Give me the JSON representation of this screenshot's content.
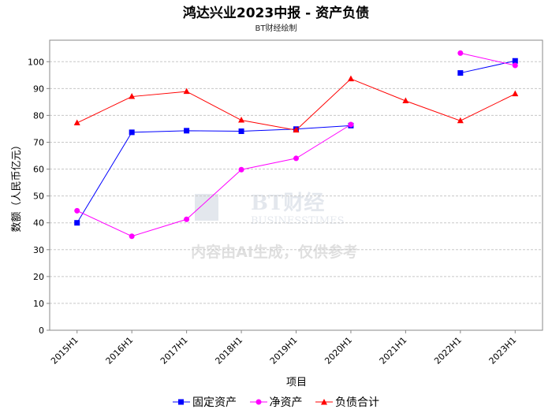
{
  "title": "鸿达兴业2023中报 - 资产负债",
  "subtitle": "BT财经绘制",
  "watermark": {
    "brand": "BT财经",
    "brand_en": "BUSINESSTIMES",
    "disclaimer": "内容由AI生成，仅供参考"
  },
  "colors": {
    "fixed_assets": "#0000ff",
    "net_assets": "#ff00ff",
    "total_liabilities": "#ff0000",
    "grid": "#c8c8c8",
    "plot_border": "#888888"
  },
  "chart_data": {
    "type": "line",
    "xlabel": "项目",
    "ylabel": "数额（人民币亿元）",
    "ylim": [
      0,
      108
    ],
    "yticks": [
      0,
      10,
      20,
      30,
      40,
      50,
      60,
      70,
      80,
      90,
      100
    ],
    "grid": true,
    "legend_position": "bottom",
    "categories": [
      "2015H1",
      "2016H1",
      "2017H1",
      "2018H1",
      "2019H1",
      "2020H1",
      "2021H1",
      "2022H1",
      "2023H1"
    ],
    "series": [
      {
        "name": "固定资产",
        "marker": "square",
        "color": "#0000ff",
        "values": [
          40,
          73.7,
          74.3,
          74.1,
          74.9,
          76.2,
          null,
          95.8,
          100.3
        ]
      },
      {
        "name": "净资产",
        "marker": "circle",
        "color": "#ff00ff",
        "values": [
          44.5,
          35,
          41.3,
          59.8,
          64,
          76.6,
          null,
          103.2,
          98.6
        ]
      },
      {
        "name": "负债合计",
        "marker": "triangle",
        "color": "#ff0000",
        "values": [
          77.2,
          87,
          88.9,
          78.2,
          74.5,
          93.6,
          85.4,
          78,
          88
        ]
      }
    ]
  }
}
